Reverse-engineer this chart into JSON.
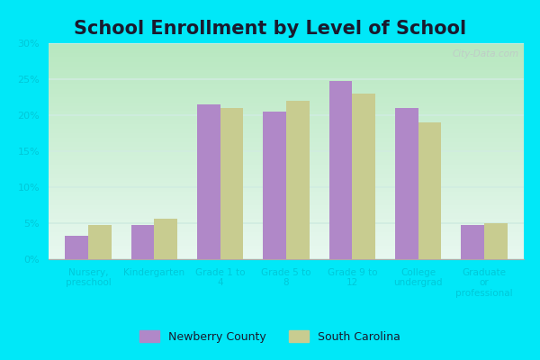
{
  "title": "School Enrollment by Level of School",
  "categories": [
    "Nursery,\npreschool",
    "Kindergarten",
    "Grade 1 to\n4",
    "Grade 5 to\n8",
    "Grade 9 to\n12",
    "College\nundergrad",
    "Graduate\nor\nprofessional"
  ],
  "newberry_values": [
    3.2,
    4.8,
    21.5,
    20.5,
    24.8,
    21.0,
    4.8
  ],
  "sc_values": [
    4.7,
    5.6,
    21.0,
    22.0,
    23.0,
    19.0,
    5.0
  ],
  "newberry_color": "#b088c8",
  "sc_color": "#c8cc90",
  "plot_bg_top": "#b8e8c0",
  "plot_bg_bottom": "#e8f8f0",
  "outer_bg": "#00e8f8",
  "ylim": [
    0,
    30
  ],
  "yticks": [
    0,
    5,
    10,
    15,
    20,
    25,
    30
  ],
  "legend_newberry": "Newberry County",
  "legend_sc": "South Carolina",
  "title_fontsize": 15,
  "tick_label_color": "#00c8d8",
  "watermark": "City-Data.com",
  "grid_color": "#d0ece0"
}
